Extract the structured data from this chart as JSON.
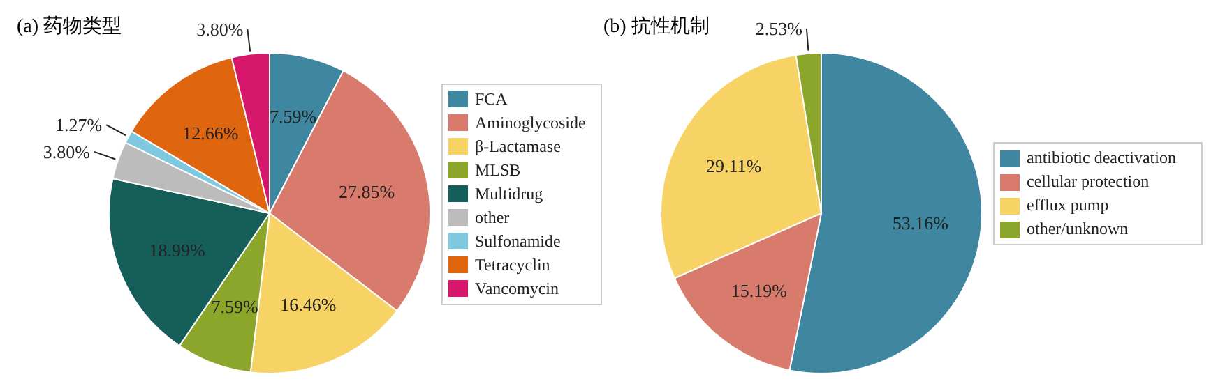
{
  "chart_data": [
    {
      "type": "pie",
      "title": "(a) 药物类型",
      "categories": [
        "FCA",
        "Aminoglycoside",
        "β-Lactamase",
        "MLSB",
        "Multidrug",
        "other",
        "Sulfonamide",
        "Tetracyclin",
        "Vancomycin"
      ],
      "values": [
        7.59,
        27.85,
        16.46,
        7.59,
        18.99,
        3.8,
        1.27,
        12.66,
        3.8
      ],
      "colors": [
        "#3f86a0",
        "#d97b6c",
        "#f7d366",
        "#8ba62a",
        "#155e5a",
        "#bcbcbc",
        "#7ec8e0",
        "#e0650f",
        "#d6176c"
      ],
      "value_labels": [
        "7.59%",
        "27.85%",
        "16.46%",
        "7.59%",
        "18.99%",
        "3.80%",
        "1.27%",
        "12.66%",
        "3.80%"
      ],
      "legend": "right"
    },
    {
      "type": "pie",
      "title": "(b) 抗性机制",
      "categories": [
        "antibiotic deactivation",
        "cellular protection",
        "efflux pump",
        "other/unknown"
      ],
      "values": [
        53.16,
        15.19,
        29.11,
        2.53
      ],
      "colors": [
        "#3f86a0",
        "#d97b6c",
        "#f7d366",
        "#8ba62a"
      ],
      "value_labels": [
        "53.16%",
        "15.19%",
        "29.11%",
        "2.53%"
      ],
      "legend": "right"
    }
  ]
}
